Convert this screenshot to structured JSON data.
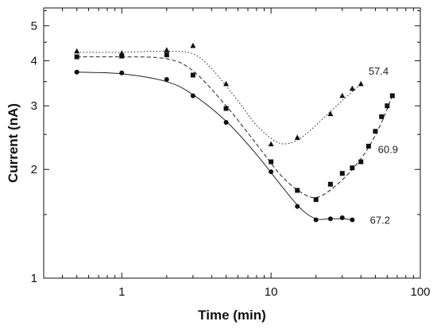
{
  "chart_data": {
    "type": "scatter",
    "xlabel": "Time (min)",
    "ylabel": "Current (nA)",
    "xscale": "log",
    "yscale": "log",
    "xlim": [
      0.3,
      100
    ],
    "ylim": [
      1,
      5.6
    ],
    "x_ticks": [
      1,
      10,
      100
    ],
    "x_tick_labels": [
      "1",
      "10",
      "100"
    ],
    "y_ticks": [
      1,
      2,
      3,
      4,
      5
    ],
    "y_tick_labels": [
      "1",
      "2",
      "3",
      "4",
      "5"
    ],
    "grid": false,
    "legend": "none",
    "series": [
      {
        "name": "57.4",
        "marker": "triangle",
        "line_style": "dotted",
        "points": [
          [
            0.5,
            4.25
          ],
          [
            1,
            4.2
          ],
          [
            2,
            4.28
          ],
          [
            3,
            4.4
          ],
          [
            5,
            3.45
          ],
          [
            10,
            2.35
          ],
          [
            15,
            2.45
          ],
          [
            25,
            2.85
          ],
          [
            30,
            3.2
          ],
          [
            35,
            3.35
          ],
          [
            40,
            3.45
          ]
        ],
        "curve": [
          [
            0.5,
            4.22
          ],
          [
            1,
            4.22
          ],
          [
            2,
            4.25
          ],
          [
            3,
            4.18
          ],
          [
            4,
            3.8
          ],
          [
            6,
            3.1
          ],
          [
            8,
            2.65
          ],
          [
            11,
            2.38
          ],
          [
            14,
            2.38
          ],
          [
            18,
            2.55
          ],
          [
            24,
            2.85
          ],
          [
            30,
            3.1
          ],
          [
            40,
            3.45
          ]
        ]
      },
      {
        "name": "60.9",
        "marker": "square",
        "line_style": "dashed",
        "points": [
          [
            0.5,
            4.1
          ],
          [
            1,
            4.12
          ],
          [
            2,
            4.15
          ],
          [
            3,
            3.65
          ],
          [
            5,
            2.95
          ],
          [
            10,
            2.1
          ],
          [
            15,
            1.75
          ],
          [
            20,
            1.65
          ],
          [
            25,
            1.82
          ],
          [
            30,
            1.95
          ],
          [
            35,
            2.02
          ],
          [
            40,
            2.1
          ],
          [
            45,
            2.32
          ],
          [
            50,
            2.55
          ],
          [
            55,
            2.8
          ],
          [
            60,
            3.0
          ],
          [
            65,
            3.2
          ]
        ],
        "curve": [
          [
            0.5,
            4.1
          ],
          [
            1,
            4.1
          ],
          [
            2,
            4.05
          ],
          [
            3,
            3.75
          ],
          [
            5,
            3.0
          ],
          [
            8,
            2.35
          ],
          [
            12,
            1.9
          ],
          [
            17,
            1.7
          ],
          [
            21,
            1.68
          ],
          [
            27,
            1.8
          ],
          [
            35,
            2.0
          ],
          [
            45,
            2.3
          ],
          [
            55,
            2.7
          ],
          [
            65,
            3.2
          ]
        ]
      },
      {
        "name": "67.2",
        "marker": "circle",
        "line_style": "solid",
        "points": [
          [
            0.5,
            3.72
          ],
          [
            1,
            3.7
          ],
          [
            2,
            3.55
          ],
          [
            3,
            3.2
          ],
          [
            5,
            2.7
          ],
          [
            10,
            1.97
          ],
          [
            15,
            1.58
          ],
          [
            20,
            1.45
          ],
          [
            25,
            1.46
          ],
          [
            30,
            1.47
          ],
          [
            35,
            1.45
          ]
        ],
        "curve": [
          [
            0.5,
            3.72
          ],
          [
            1,
            3.68
          ],
          [
            2,
            3.5
          ],
          [
            3,
            3.22
          ],
          [
            5,
            2.72
          ],
          [
            8,
            2.2
          ],
          [
            12,
            1.78
          ],
          [
            16,
            1.55
          ],
          [
            20,
            1.46
          ],
          [
            25,
            1.46
          ],
          [
            30,
            1.46
          ],
          [
            35,
            1.45
          ]
        ]
      }
    ],
    "annotations": [
      {
        "text": "57.4",
        "x": 45,
        "y": 3.75
      },
      {
        "text": "60.9",
        "x": 52,
        "y": 2.28
      },
      {
        "text": "67.2",
        "x": 46,
        "y": 1.45
      }
    ]
  }
}
